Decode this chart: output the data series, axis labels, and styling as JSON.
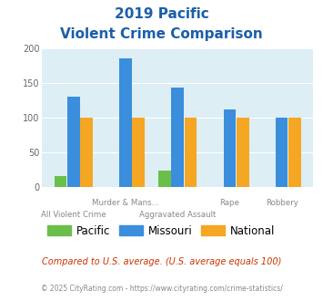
{
  "title_line1": "2019 Pacific",
  "title_line2": "Violent Crime Comparison",
  "pacific_values": [
    15,
    0,
    23,
    0,
    0
  ],
  "missouri_values": [
    130,
    185,
    143,
    112,
    99
  ],
  "national_values": [
    100,
    100,
    100,
    100,
    100
  ],
  "color_pacific": "#6abf4b",
  "color_missouri": "#3a8edb",
  "color_national": "#f5a623",
  "ylim": [
    0,
    200
  ],
  "yticks": [
    0,
    50,
    100,
    150,
    200
  ],
  "bg_color": "#ddeef5",
  "title_color": "#1a5fa8",
  "top_labels": [
    "",
    "Murder & Mans...",
    "",
    "Rape",
    "Robbery"
  ],
  "bottom_labels": [
    "All Violent Crime",
    "",
    "Aggravated Assault",
    "",
    ""
  ],
  "footnote1": "Compared to U.S. average. (U.S. average equals 100)",
  "footnote2": "© 2025 CityRating.com - https://www.cityrating.com/crime-statistics/",
  "footnote1_color": "#cc3300",
  "footnote2_color": "#888888"
}
